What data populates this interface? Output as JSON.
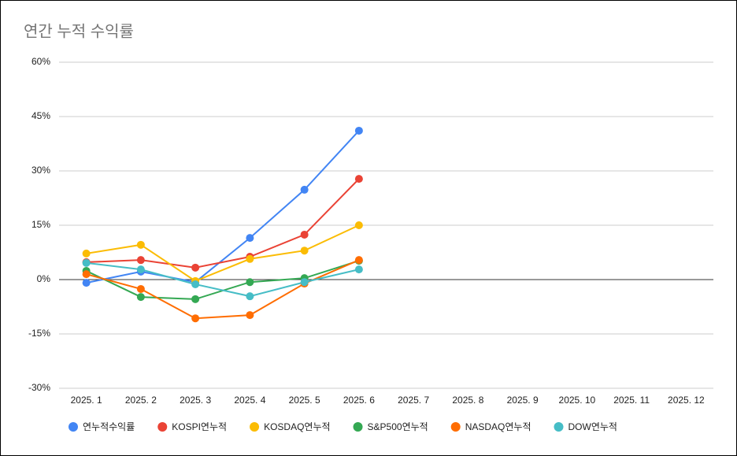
{
  "chart_data": {
    "type": "line",
    "title": "연간 누적 수익률",
    "categories": [
      "2025. 1",
      "2025. 2",
      "2025. 3",
      "2025. 4",
      "2025. 5",
      "2025. 6",
      "2025. 7",
      "2025. 8",
      "2025. 9",
      "2025. 10",
      "2025. 11",
      "2025. 12"
    ],
    "series": [
      {
        "name": "연누적수익률",
        "color": "#4285f4",
        "values": [
          -0.9,
          2.2,
          -0.7,
          11.5,
          24.8,
          41.1,
          null,
          null,
          null,
          null,
          null,
          null
        ]
      },
      {
        "name": "KOSPI연누적",
        "color": "#ea4335",
        "values": [
          4.8,
          5.4,
          3.3,
          6.3,
          12.4,
          27.8,
          null,
          null,
          null,
          null,
          null,
          null
        ]
      },
      {
        "name": "KOSDAQ연누적",
        "color": "#fbbc04",
        "values": [
          7.2,
          9.6,
          -0.4,
          5.7,
          8.0,
          15.0,
          null,
          null,
          null,
          null,
          null,
          null
        ]
      },
      {
        "name": "S&P500연누적",
        "color": "#34a853",
        "values": [
          2.4,
          -4.8,
          -5.4,
          -0.7,
          0.4,
          5.2,
          null,
          null,
          null,
          null,
          null,
          null
        ]
      },
      {
        "name": "NASDAQ연누적",
        "color": "#ff6d01",
        "values": [
          1.5,
          -2.6,
          -10.7,
          -9.8,
          -1.1,
          5.4,
          null,
          null,
          null,
          null,
          null,
          null
        ]
      },
      {
        "name": "DOW연누적",
        "color": "#46bdc6",
        "values": [
          4.6,
          2.8,
          -1.3,
          -4.6,
          -0.7,
          2.8,
          null,
          null,
          null,
          null,
          null,
          null
        ]
      }
    ],
    "ylim": [
      -30,
      60
    ],
    "yticks": [
      {
        "value": -30,
        "label": "-30%"
      },
      {
        "value": -15,
        "label": "-15%"
      },
      {
        "value": 0,
        "label": "0%"
      },
      {
        "value": 15,
        "label": "15%"
      },
      {
        "value": 30,
        "label": "30%"
      },
      {
        "value": 45,
        "label": "45%"
      },
      {
        "value": 60,
        "label": "60%"
      }
    ],
    "grid": true,
    "legend": "bottom"
  }
}
